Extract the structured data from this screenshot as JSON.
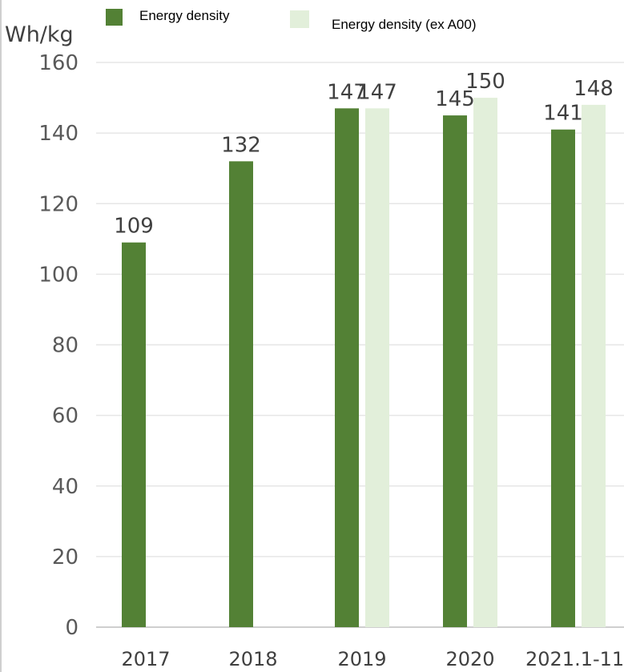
{
  "chart_data": {
    "type": "bar",
    "y_unit_label": "Wh/kg",
    "categories": [
      "2017",
      "2018",
      "2019",
      "2020",
      "2021.1-11"
    ],
    "series": [
      {
        "name": "Energy density",
        "color": "#538135",
        "values": [
          109,
          132,
          147,
          145,
          141
        ]
      },
      {
        "name": "Energy density (ex A00)",
        "color": "#e2efda",
        "values": [
          null,
          null,
          147,
          150,
          148
        ]
      }
    ],
    "ylim": [
      0,
      160
    ],
    "yticks": [
      0,
      20,
      40,
      60,
      80,
      100,
      120,
      140,
      160
    ],
    "grid": true,
    "legend_position": "top"
  }
}
